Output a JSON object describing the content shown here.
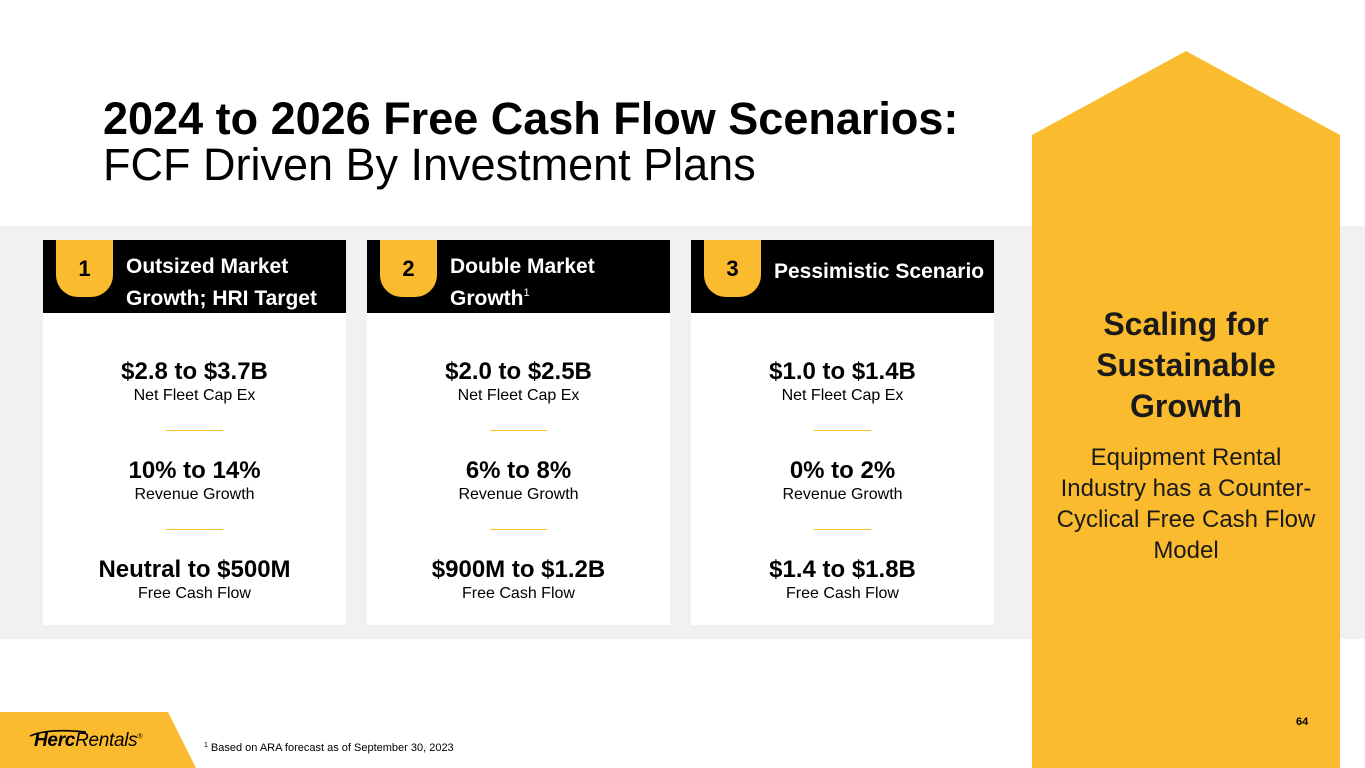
{
  "title": {
    "line1": "2024 to 2026 Free Cash Flow Scenarios:",
    "line2": "FCF Driven By Investment Plans"
  },
  "scenarios": [
    {
      "number": "1",
      "title": "Outsized Market Growth; HRI Target",
      "title_footnote": "",
      "metrics": [
        {
          "value": "$2.8 to $3.7B",
          "label": "Net Fleet Cap Ex"
        },
        {
          "value": "10% to 14%",
          "label": "Revenue Growth"
        },
        {
          "value": "Neutral to $500M",
          "label": "Free Cash Flow"
        }
      ]
    },
    {
      "number": "2",
      "title": "Double Market Growth",
      "title_footnote": "1",
      "metrics": [
        {
          "value": "$2.0 to $2.5B",
          "label": "Net Fleet Cap Ex"
        },
        {
          "value": "6% to 8%",
          "label": "Revenue Growth"
        },
        {
          "value": "$900M to $1.2B",
          "label": "Free Cash Flow"
        }
      ]
    },
    {
      "number": "3",
      "title": "Pessimistic Scenario",
      "title_footnote": "",
      "metrics": [
        {
          "value": "$1.0 to $1.4B",
          "label": "Net Fleet Cap Ex"
        },
        {
          "value": "0% to 2%",
          "label": "Revenue Growth"
        },
        {
          "value": "$1.4 to $1.8B",
          "label": "Free Cash Flow"
        }
      ]
    }
  ],
  "sidebar": {
    "heading": "Scaling for Sustainable Growth",
    "body": "Equipment Rental Industry has a Counter-Cyclical Free Cash Flow Model"
  },
  "footer": {
    "logo_bold": "Herc",
    "logo_rest": "Rentals",
    "logo_mark": "®",
    "footnote_marker": "1",
    "footnote": "Based on ARA forecast as of September 30, 2023",
    "page_number": "64"
  },
  "colors": {
    "accent": "#fbbb2e",
    "header_bg": "#000000",
    "band_bg": "#f1f1f1"
  }
}
